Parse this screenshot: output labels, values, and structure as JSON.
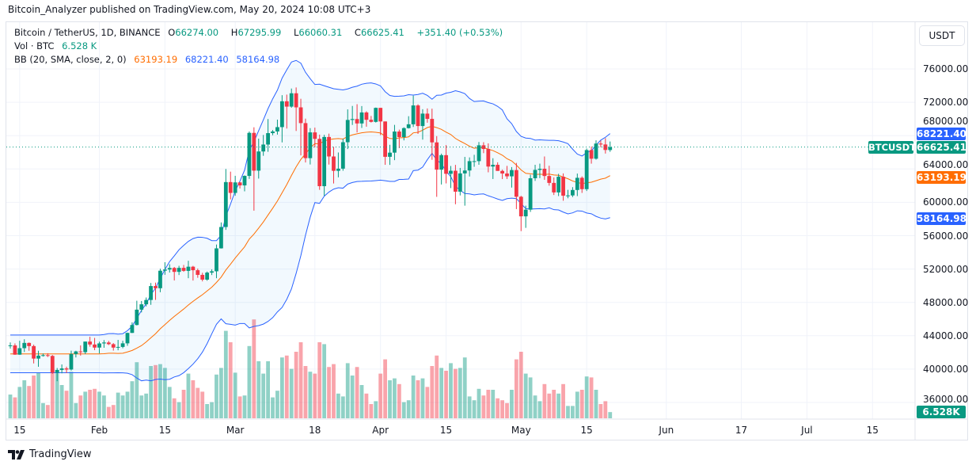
{
  "publisher_line": "Bitcoin_Analyzer published on TradingView.com, May 20, 2024 10:08 UTC+3",
  "legend": {
    "symbol": "Bitcoin / TetherUS, 1D, BINANCE",
    "o_label": "O",
    "o": "66274.00",
    "h_label": "H",
    "h": "67295.99",
    "l_label": "L",
    "l": "66060.31",
    "c_label": "C",
    "c": "66625.41",
    "change": "+351.40 (+0.53%)",
    "vol_label": "Vol · BTC",
    "vol": "6.528 K",
    "bb_label": "BB (20, SMA, close, 2, 0)",
    "bb_basis": "63193.19",
    "bb_upper": "68221.40",
    "bb_lower": "58164.98"
  },
  "price_axis": {
    "currency_button": "USDT",
    "ticks": [
      "76000.00",
      "72000.00",
      "68000.00",
      "64000.00",
      "60000.00",
      "56000.00",
      "52000.00",
      "48000.00",
      "44000.00",
      "40000.00",
      "36000.00"
    ],
    "tags": {
      "bb_upper": "68221.40",
      "last_price": "66625.41",
      "symbol": "BTCUSDT",
      "bb_basis": "63193.19",
      "bb_lower": "58164.98",
      "volume": "6.528K"
    }
  },
  "time_axis": [
    {
      "text": "15",
      "date": "2024-01-15"
    },
    {
      "text": "Feb",
      "date": "2024-02-01"
    },
    {
      "text": "15",
      "date": "2024-02-15"
    },
    {
      "text": "Mar",
      "date": "2024-03-01"
    },
    {
      "text": "18",
      "date": "2024-03-18"
    },
    {
      "text": "Apr",
      "date": "2024-04-01"
    },
    {
      "text": "15",
      "date": "2024-04-15"
    },
    {
      "text": "May",
      "date": "2024-05-01"
    },
    {
      "text": "15",
      "date": "2024-05-15"
    },
    {
      "text": "Jun",
      "date": "2024-06-01"
    },
    {
      "text": "17",
      "date": "2024-06-17"
    },
    {
      "text": "Jul",
      "date": "2024-07-01"
    },
    {
      "text": "15",
      "date": "2024-07-15"
    }
  ],
  "branding": "TradingView",
  "colors": {
    "up": "#089981",
    "down": "#f23645",
    "bb_band": "#2962ff",
    "bb_basis": "#ff6d00",
    "band_fill": "#2196f3"
  },
  "chart_data": {
    "type": "candlestick",
    "symbol": "BTCUSDT",
    "interval": "1D",
    "ylim": [
      35000,
      80000
    ],
    "grid": true,
    "indicators": [
      "Volume",
      "Bollinger Bands (20, SMA, close, 2, 0)"
    ],
    "columns": [
      "date",
      "open",
      "high",
      "low",
      "close",
      "volume_k"
    ],
    "start_date": "2024-01-13",
    "rows": [
      [
        "2024-01-13",
        42780,
        43200,
        42460,
        42840,
        25
      ],
      [
        "2024-01-14",
        42840,
        43080,
        41720,
        41730,
        22
      ],
      [
        "2024-01-15",
        41730,
        43400,
        41720,
        42510,
        33
      ],
      [
        "2024-01-16",
        42510,
        43580,
        42050,
        43140,
        40
      ],
      [
        "2024-01-17",
        43140,
        43190,
        42200,
        42760,
        34
      ],
      [
        "2024-01-18",
        42760,
        42930,
        40680,
        41260,
        45
      ],
      [
        "2024-01-19",
        41260,
        42200,
        40280,
        41620,
        48
      ],
      [
        "2024-01-20",
        41620,
        41870,
        41500,
        41670,
        16
      ],
      [
        "2024-01-21",
        41670,
        41900,
        41450,
        41580,
        14
      ],
      [
        "2024-01-22",
        41580,
        41690,
        39430,
        39560,
        52
      ],
      [
        "2024-01-23",
        39560,
        40130,
        38550,
        39900,
        50
      ],
      [
        "2024-01-24",
        39900,
        40560,
        39490,
        40080,
        35
      ],
      [
        "2024-01-25",
        40080,
        40290,
        39530,
        39950,
        29
      ],
      [
        "2024-01-26",
        39950,
        42210,
        39820,
        41810,
        49
      ],
      [
        "2024-01-27",
        41810,
        42200,
        41400,
        42120,
        16
      ],
      [
        "2024-01-28",
        42120,
        42840,
        41620,
        42030,
        24
      ],
      [
        "2024-01-29",
        42030,
        43300,
        41800,
        43300,
        28
      ],
      [
        "2024-01-30",
        43300,
        43880,
        42690,
        42950,
        30
      ],
      [
        "2024-01-31",
        42950,
        43740,
        42270,
        42580,
        31
      ],
      [
        "2024-02-01",
        42580,
        43290,
        41880,
        43080,
        28
      ],
      [
        "2024-02-02",
        43080,
        43480,
        42560,
        43190,
        24
      ],
      [
        "2024-02-03",
        43190,
        43380,
        42880,
        42990,
        12
      ],
      [
        "2024-02-04",
        42990,
        43120,
        42220,
        42580,
        14
      ],
      [
        "2024-02-05",
        42580,
        43500,
        42260,
        42660,
        27
      ],
      [
        "2024-02-06",
        42660,
        43400,
        42500,
        43090,
        24
      ],
      [
        "2024-02-07",
        43090,
        44370,
        42790,
        44340,
        28
      ],
      [
        "2024-02-08",
        44340,
        45610,
        44330,
        45290,
        39
      ],
      [
        "2024-02-09",
        45290,
        48200,
        45240,
        47130,
        59
      ],
      [
        "2024-02-10",
        47130,
        48170,
        46800,
        47770,
        24
      ],
      [
        "2024-02-11",
        47770,
        48590,
        47520,
        48290,
        26
      ],
      [
        "2024-02-12",
        48290,
        50330,
        47710,
        49960,
        55
      ],
      [
        "2024-02-13",
        49960,
        50370,
        48300,
        49700,
        56
      ],
      [
        "2024-02-14",
        49700,
        52040,
        49220,
        51800,
        57
      ],
      [
        "2024-02-15",
        51800,
        52820,
        51310,
        51940,
        53
      ],
      [
        "2024-02-16",
        51940,
        52580,
        51580,
        52130,
        33
      ],
      [
        "2024-02-17",
        52130,
        52250,
        50630,
        51660,
        21
      ],
      [
        "2024-02-18",
        51660,
        52390,
        51280,
        52140,
        17
      ],
      [
        "2024-02-19",
        52140,
        52490,
        51670,
        51780,
        30
      ],
      [
        "2024-02-20",
        51780,
        52990,
        50900,
        52280,
        47
      ],
      [
        "2024-02-21",
        52280,
        52380,
        50620,
        51860,
        40
      ],
      [
        "2024-02-22",
        51860,
        52060,
        50950,
        51300,
        32
      ],
      [
        "2024-02-23",
        51300,
        51550,
        50520,
        50730,
        28
      ],
      [
        "2024-02-24",
        50730,
        51700,
        50600,
        51570,
        15
      ],
      [
        "2024-02-25",
        51570,
        51960,
        51280,
        51730,
        17
      ],
      [
        "2024-02-26",
        51730,
        54940,
        50900,
        54480,
        46
      ],
      [
        "2024-02-27",
        54480,
        57590,
        54460,
        57040,
        53
      ],
      [
        "2024-02-28",
        57040,
        64000,
        56700,
        62430,
        92
      ],
      [
        "2024-02-29",
        62430,
        63680,
        60360,
        61130,
        80
      ],
      [
        "2024-03-01",
        61130,
        63180,
        60790,
        62390,
        48
      ],
      [
        "2024-03-02",
        62390,
        62430,
        61660,
        62030,
        23
      ],
      [
        "2024-03-03",
        62030,
        63230,
        61320,
        63170,
        24
      ],
      [
        "2024-03-04",
        63170,
        68500,
        62810,
        68330,
        76
      ],
      [
        "2024-03-05",
        68330,
        69000,
        59000,
        63800,
        104
      ],
      [
        "2024-03-06",
        63800,
        67640,
        62850,
        66100,
        60
      ],
      [
        "2024-03-07",
        66100,
        68080,
        65580,
        66930,
        47
      ],
      [
        "2024-03-08",
        66930,
        69990,
        66060,
        68300,
        60
      ],
      [
        "2024-03-09",
        68300,
        68670,
        68050,
        68500,
        22
      ],
      [
        "2024-03-10",
        68500,
        69920,
        68120,
        69020,
        29
      ],
      [
        "2024-03-11",
        69020,
        72850,
        67190,
        72120,
        64
      ],
      [
        "2024-03-12",
        72120,
        72920,
        68850,
        71480,
        66
      ],
      [
        "2024-03-13",
        71480,
        73650,
        71340,
        73080,
        52
      ],
      [
        "2024-03-14",
        73080,
        73780,
        68560,
        71390,
        70
      ],
      [
        "2024-03-15",
        71390,
        72420,
        65630,
        69500,
        80
      ],
      [
        "2024-03-16",
        69500,
        70040,
        64780,
        65300,
        55
      ],
      [
        "2024-03-17",
        65300,
        68900,
        64540,
        68390,
        49
      ],
      [
        "2024-03-18",
        68390,
        68960,
        66590,
        67610,
        47
      ],
      [
        "2024-03-19",
        67610,
        68120,
        61500,
        61940,
        80
      ],
      [
        "2024-03-20",
        61940,
        68100,
        60780,
        67840,
        78
      ],
      [
        "2024-03-21",
        67840,
        68240,
        64530,
        65500,
        54
      ],
      [
        "2024-03-22",
        65500,
        66650,
        62260,
        63780,
        57
      ],
      [
        "2024-03-23",
        63780,
        65980,
        63000,
        64040,
        26
      ],
      [
        "2024-03-24",
        64040,
        67630,
        63790,
        67210,
        23
      ],
      [
        "2024-03-25",
        67210,
        71150,
        66390,
        69880,
        58
      ],
      [
        "2024-03-26",
        69880,
        71560,
        69280,
        69990,
        45
      ],
      [
        "2024-03-27",
        69990,
        71770,
        68380,
        69460,
        54
      ],
      [
        "2024-03-28",
        69460,
        71550,
        68920,
        70780,
        35
      ],
      [
        "2024-03-29",
        70780,
        70920,
        69070,
        69900,
        26
      ],
      [
        "2024-03-30",
        69900,
        70360,
        69570,
        69650,
        15
      ],
      [
        "2024-03-31",
        69650,
        71370,
        69570,
        71330,
        18
      ],
      [
        "2024-04-01",
        71330,
        71330,
        68060,
        69700,
        47
      ],
      [
        "2024-04-02",
        69700,
        69700,
        64500,
        65460,
        62
      ],
      [
        "2024-04-03",
        65460,
        66900,
        64490,
        65960,
        40
      ],
      [
        "2024-04-04",
        65960,
        69290,
        65060,
        68490,
        42
      ],
      [
        "2024-04-05",
        68490,
        68720,
        66500,
        67830,
        36
      ],
      [
        "2024-04-06",
        67830,
        69000,
        67430,
        68900,
        17
      ],
      [
        "2024-04-07",
        68900,
        70330,
        68850,
        69360,
        19
      ],
      [
        "2024-04-08",
        69360,
        72800,
        69040,
        71620,
        45
      ],
      [
        "2024-04-09",
        71620,
        71760,
        68210,
        69150,
        40
      ],
      [
        "2024-04-10",
        69150,
        71170,
        67520,
        70640,
        42
      ],
      [
        "2024-04-11",
        70640,
        71260,
        69550,
        70010,
        33
      ],
      [
        "2024-04-12",
        70010,
        71230,
        65100,
        67190,
        55
      ],
      [
        "2024-04-13",
        67190,
        67940,
        60660,
        63920,
        66
      ],
      [
        "2024-04-14",
        63920,
        65840,
        62140,
        65660,
        53
      ],
      [
        "2024-04-15",
        65660,
        66870,
        62270,
        63420,
        50
      ],
      [
        "2024-04-16",
        63420,
        64360,
        61710,
        63790,
        58
      ],
      [
        "2024-04-17",
        63790,
        64490,
        59770,
        61280,
        52
      ],
      [
        "2024-04-18",
        61280,
        64130,
        60830,
        63470,
        53
      ],
      [
        "2024-04-19",
        63470,
        65450,
        59600,
        63820,
        64
      ],
      [
        "2024-04-20",
        63820,
        65390,
        63100,
        64940,
        23
      ],
      [
        "2024-04-21",
        64940,
        65700,
        64260,
        64940,
        19
      ],
      [
        "2024-04-22",
        64940,
        67230,
        64500,
        66840,
        31
      ],
      [
        "2024-04-23",
        66840,
        67210,
        65900,
        66400,
        24
      ],
      [
        "2024-04-24",
        66400,
        67070,
        63600,
        64290,
        30
      ],
      [
        "2024-04-25",
        64290,
        65290,
        62800,
        64500,
        30
      ],
      [
        "2024-04-26",
        64500,
        64800,
        63780,
        63770,
        21
      ],
      [
        "2024-04-27",
        63770,
        63920,
        62790,
        63460,
        19
      ],
      [
        "2024-04-28",
        63460,
        64370,
        62800,
        63120,
        16
      ],
      [
        "2024-04-29",
        63120,
        64230,
        61770,
        63870,
        30
      ],
      [
        "2024-04-30",
        63870,
        64730,
        59190,
        60670,
        62
      ],
      [
        "2024-05-01",
        60670,
        60780,
        56550,
        58320,
        70
      ],
      [
        "2024-05-02",
        58320,
        59600,
        56940,
        59120,
        47
      ],
      [
        "2024-05-03",
        59120,
        63320,
        58850,
        62890,
        43
      ],
      [
        "2024-05-04",
        62890,
        64500,
        62570,
        63890,
        24
      ],
      [
        "2024-05-05",
        63890,
        64640,
        62900,
        64030,
        18
      ],
      [
        "2024-05-06",
        64030,
        65500,
        62700,
        63160,
        36
      ],
      [
        "2024-05-07",
        63160,
        64390,
        62000,
        62330,
        26
      ],
      [
        "2024-05-08",
        62330,
        62990,
        60880,
        61190,
        30
      ],
      [
        "2024-05-09",
        61190,
        63420,
        60750,
        63070,
        26
      ],
      [
        "2024-05-10",
        63070,
        63470,
        60190,
        60800,
        36
      ],
      [
        "2024-05-11",
        60800,
        61500,
        60490,
        60830,
        13
      ],
      [
        "2024-05-12",
        60830,
        61820,
        60630,
        61480,
        13
      ],
      [
        "2024-05-13",
        61480,
        63450,
        60750,
        62940,
        28
      ],
      [
        "2024-05-14",
        62940,
        63110,
        61130,
        61580,
        30
      ],
      [
        "2024-05-15",
        61580,
        66450,
        61360,
        66270,
        44
      ],
      [
        "2024-05-16",
        66270,
        66700,
        64640,
        65230,
        43
      ],
      [
        "2024-05-17",
        65230,
        67440,
        65120,
        67050,
        30
      ],
      [
        "2024-05-18",
        67050,
        67400,
        66600,
        66940,
        15
      ],
      [
        "2024-05-19",
        66940,
        67700,
        65850,
        66280,
        18
      ],
      [
        "2024-05-20",
        66274,
        67295.99,
        66060.31,
        66625.41,
        6.528
      ]
    ]
  }
}
